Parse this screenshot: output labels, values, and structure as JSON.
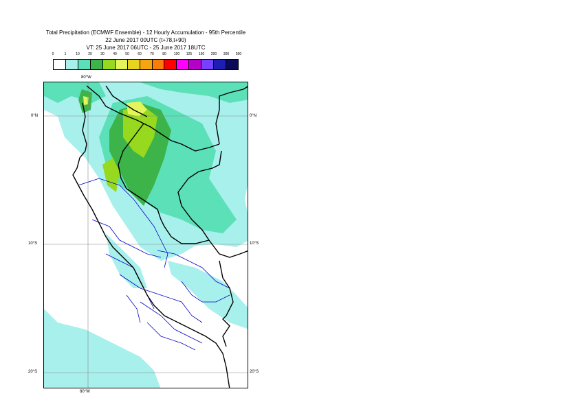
{
  "title": {
    "line1": "Total Precipitation (ECMWF Ensemble) - 12 Hourly Accumulation - 95th Percentile",
    "line2": "22 June 2017 00UTC (t+78,t+90)",
    "line3": "VT: 25 June 2017 06UTC - 25 June 2017 18UTC"
  },
  "legend": {
    "labels": [
      "0",
      "1",
      "10",
      "20",
      "30",
      "40",
      "50",
      "60",
      "70",
      "80",
      "100",
      "125",
      "150",
      "200",
      "300",
      "500"
    ],
    "colors": [
      "#ffffff",
      "#a8f0ec",
      "#5ce0b8",
      "#3cb44a",
      "#96d91e",
      "#e4f55a",
      "#e6d41e",
      "#f5a50f",
      "#fa7d0a",
      "#ff0000",
      "#ff00ff",
      "#b400c8",
      "#7840ff",
      "#1e1eb4",
      "#0a0a5a"
    ]
  },
  "map": {
    "coord_labels": {
      "lon_top": "80°W",
      "lon_bottom": "80°W",
      "lat0_left": "0°N",
      "lat0_right": "0°N",
      "lat10_left": "10°S",
      "lat10_right": "10°S",
      "lat20_left": "20°S",
      "lat20_right": "20°S"
    },
    "colors": {
      "light_cyan": "#a8f0ec",
      "cyan_green": "#5ce0b8",
      "green": "#3cb44a",
      "yellow_green": "#96d91e",
      "yellow": "#e4f55a",
      "country_border": "#000000",
      "region_border": "#0000c8",
      "grid": "#888888"
    }
  }
}
